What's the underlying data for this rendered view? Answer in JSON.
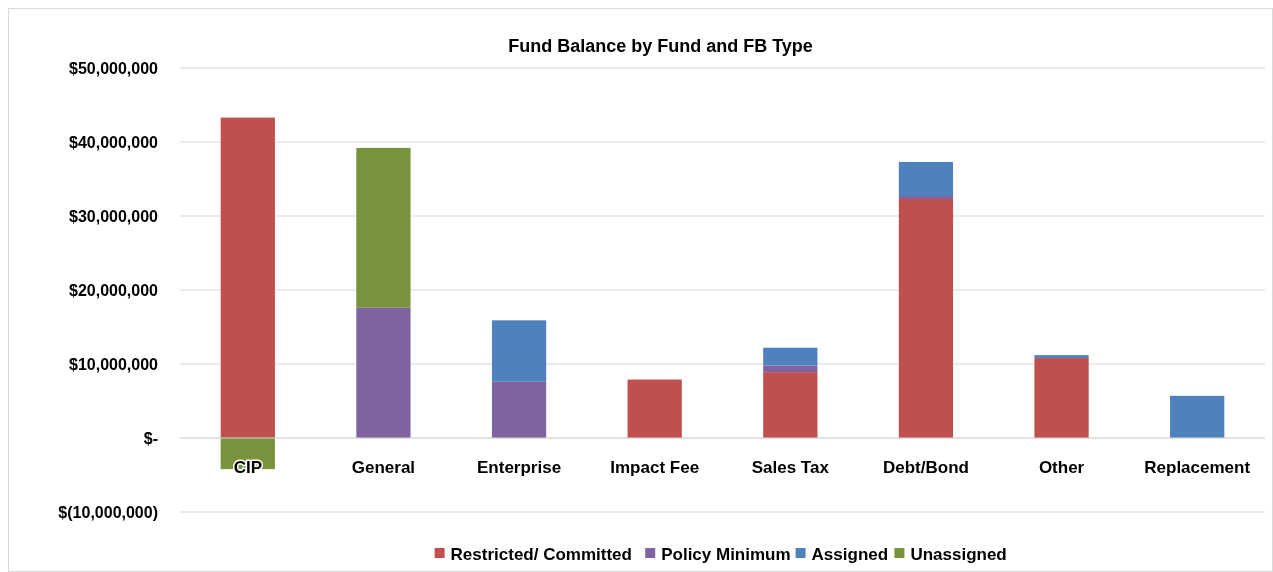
{
  "chart_data": {
    "type": "bar",
    "title": "Fund Balance by Fund and FB Type",
    "stacked": true,
    "categories": [
      "CIP",
      "General",
      "Enterprise",
      "Impact Fee",
      "Sales Tax",
      "Debt/Bond",
      "Other",
      "Replacement"
    ],
    "series": [
      {
        "name": "Restricted/ Committed",
        "color": "#c0504d",
        "values": [
          43300000,
          null,
          null,
          7900000,
          8900000,
          32300000,
          10800000,
          null
        ]
      },
      {
        "name": "Policy Minimum",
        "color": "#8064a2",
        "values": [
          null,
          17600000,
          7600000,
          null,
          900000,
          400000,
          null,
          null
        ]
      },
      {
        "name": "Assigned",
        "color": "#4f81bd",
        "values": [
          null,
          null,
          8300000,
          null,
          2400000,
          4600000,
          400000,
          5700000
        ]
      },
      {
        "name": "Unassigned",
        "color": "#77933c",
        "values": [
          -4200000,
          21600000,
          null,
          null,
          null,
          null,
          null,
          null
        ]
      }
    ],
    "ylim": [
      -10000000,
      50000000
    ],
    "yticks": [
      {
        "value": -10000000,
        "label": "$(10,000,000)"
      },
      {
        "value": 0,
        "label": "$-"
      },
      {
        "value": 10000000,
        "label": "$10,000,000"
      },
      {
        "value": 20000000,
        "label": "$20,000,000"
      },
      {
        "value": 30000000,
        "label": "$30,000,000"
      },
      {
        "value": 40000000,
        "label": "$40,000,000"
      },
      {
        "value": 50000000,
        "label": "$50,000,000"
      }
    ],
    "grid": "y",
    "legend": "bottom"
  }
}
